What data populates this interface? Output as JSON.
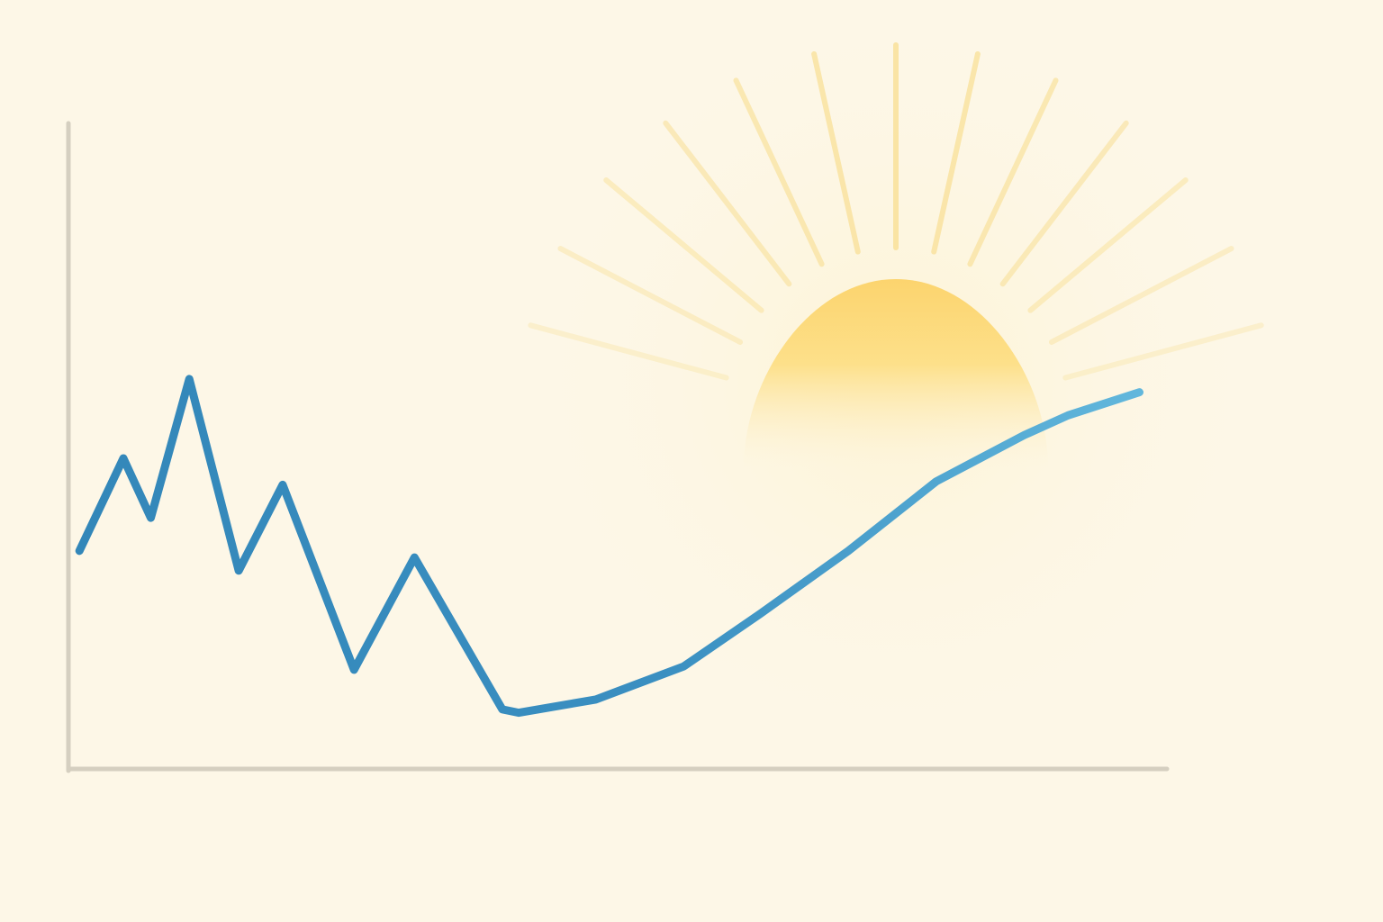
{
  "colors": {
    "background": "#fdf7e7",
    "axis": "#d5cfc0",
    "grid": "#ece4d2",
    "line_start": "#3387b9",
    "line_end": "#62b7dc",
    "sun_top": "#fcd46e",
    "sun_bottom": "#fdf3d8",
    "sun_rays": "#f8dd8f"
  },
  "decorations": {
    "sun_icon": "sun-icon",
    "sun_ray_count": 13
  },
  "chart_data": {
    "type": "line",
    "title": "",
    "xlabel": "",
    "ylabel": "",
    "grid": true,
    "axis_ticks": false,
    "xlim": [
      0,
      100
    ],
    "ylim": [
      0,
      100
    ],
    "gridlines_y": [
      20,
      40,
      60,
      80,
      100
    ],
    "series": [
      {
        "x": [
          1,
          5,
          7.5,
          11,
          15.5,
          19.5,
          26,
          31.5,
          39.5,
          41,
          48,
          56,
          63,
          71,
          79,
          87,
          91,
          97.5
        ],
        "y": [
          33,
          47,
          38,
          59,
          30,
          43,
          15,
          32,
          9,
          8.5,
          10.5,
          15.5,
          23.5,
          33,
          43.5,
          50.5,
          53.5,
          57
        ]
      }
    ]
  }
}
